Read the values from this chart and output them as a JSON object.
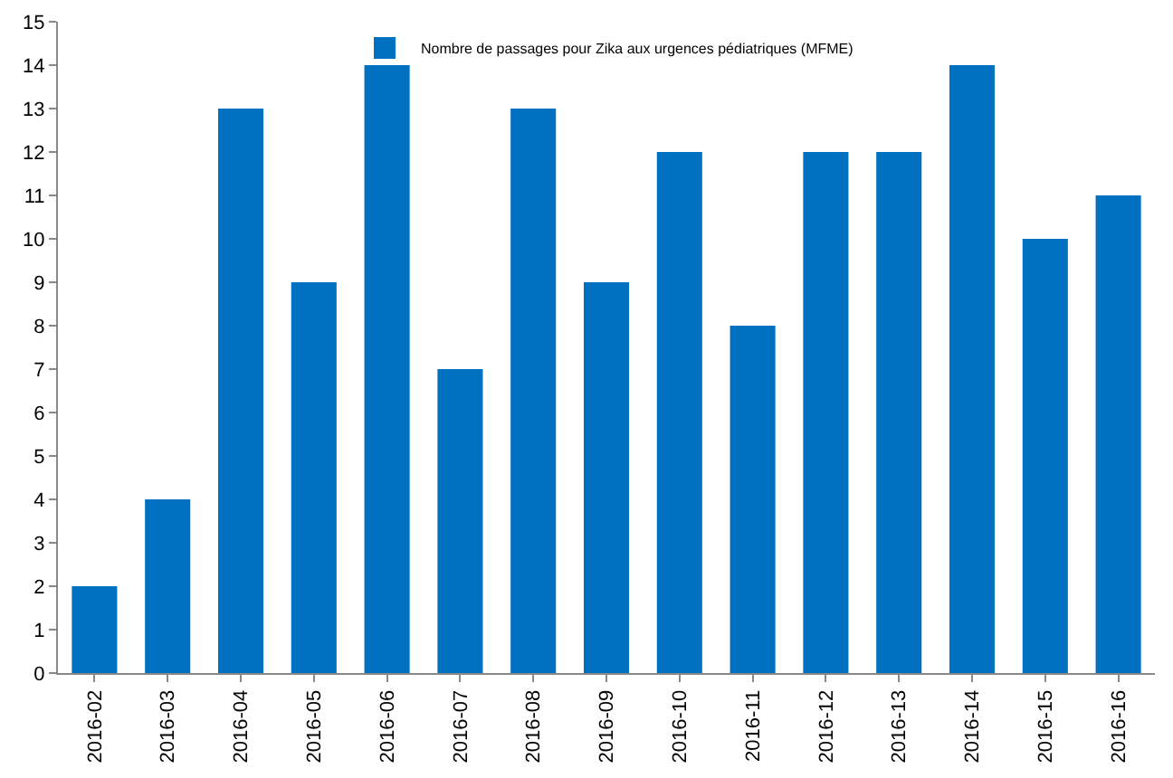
{
  "chart_data": {
    "type": "bar",
    "categories": [
      "2016-02",
      "2016-03",
      "2016-04",
      "2016-05",
      "2016-06",
      "2016-07",
      "2016-08",
      "2016-09",
      "2016-10",
      "2016-11",
      "2016-12",
      "2016-13",
      "2016-14",
      "2016-15",
      "2016-16"
    ],
    "series": [
      {
        "name": "Nombre de passages pour Zika aux urgences pédiatriques (MFME)",
        "color": "#0070c0",
        "values": [
          2,
          4,
          13,
          9,
          14,
          7,
          13,
          9,
          12,
          8,
          12,
          12,
          14,
          10,
          11
        ]
      }
    ],
    "ylim": [
      0,
      15
    ],
    "yticks": [
      0,
      1,
      2,
      3,
      4,
      5,
      6,
      7,
      8,
      9,
      10,
      11,
      12,
      13,
      14,
      15
    ],
    "grid": false,
    "legend": "top"
  }
}
